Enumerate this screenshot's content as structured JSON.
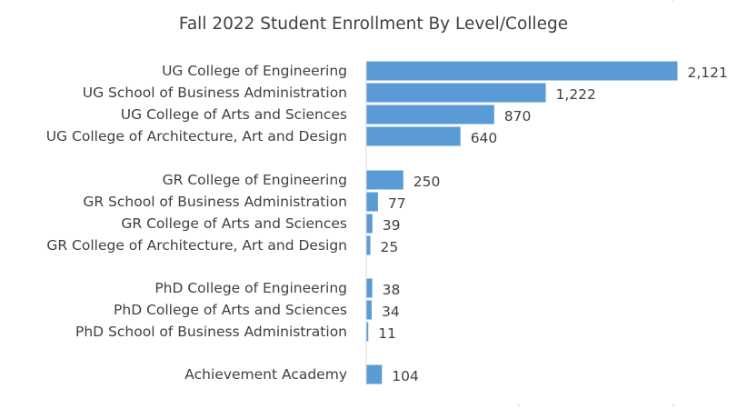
{
  "chart_data": {
    "type": "bar",
    "orientation": "horizontal",
    "title": "Fall 2022 Student  Enrollment By Level/College",
    "xlabel": "",
    "ylabel": "",
    "categories": [
      "UG College of Engineering",
      "UG School of Business Administration",
      "UG College of Arts and Sciences",
      "UG College of Architecture, Art and Design",
      "GR College of Engineering",
      "GR School of Business Administration",
      "GR College of Arts and Sciences",
      "GR College of Architecture, Art and Design",
      "PhD College of Engineering",
      "PhD College of Arts and Sciences",
      "PhD School of Business Administration",
      "Achievement Academy"
    ],
    "values": [
      2121,
      1222,
      870,
      640,
      250,
      77,
      39,
      25,
      38,
      34,
      11,
      104
    ],
    "value_labels": [
      "2,121",
      "1,222",
      "870",
      "640",
      "250",
      "77",
      "39",
      "25",
      "38",
      "34",
      "11",
      "104"
    ],
    "groups": [
      {
        "members": [
          0,
          1,
          2,
          3
        ]
      },
      {
        "members": [
          4,
          5,
          6,
          7
        ]
      },
      {
        "members": [
          8,
          9,
          10
        ]
      },
      {
        "members": [
          11
        ]
      }
    ],
    "xlim": [
      0,
      2121
    ],
    "grid": false,
    "legend": "none",
    "bar_color": "#5b9bd5",
    "axis_color": "#d9d9d9",
    "text_color": "#404040"
  }
}
